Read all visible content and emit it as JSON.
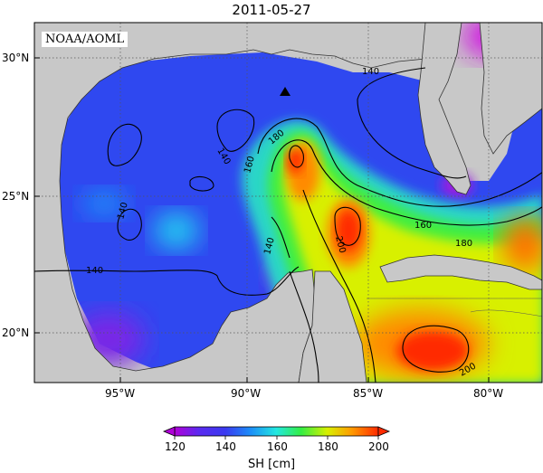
{
  "title": "2011-05-27",
  "watermark": "NOAA/AOML",
  "lat_labels": [
    "30°N",
    "25°N",
    "20°N"
  ],
  "lon_labels": [
    "95°W",
    "90°W",
    "85°W",
    "80°W"
  ],
  "contour_labels": [
    "140",
    "140",
    "140",
    "140",
    "160",
    "180",
    "200",
    "160",
    "180",
    "200",
    "140"
  ],
  "colorbar": {
    "title": "SH [cm]",
    "ticks": [
      "120",
      "140",
      "160",
      "180",
      "200"
    ],
    "colors": [
      "#b000d8",
      "#3a3af0",
      "#1fa8f8",
      "#22e8e0",
      "#33ee44",
      "#d8f000",
      "#ffd000",
      "#ff8a00",
      "#ff2a00"
    ]
  },
  "marker": "triangle-marker"
}
